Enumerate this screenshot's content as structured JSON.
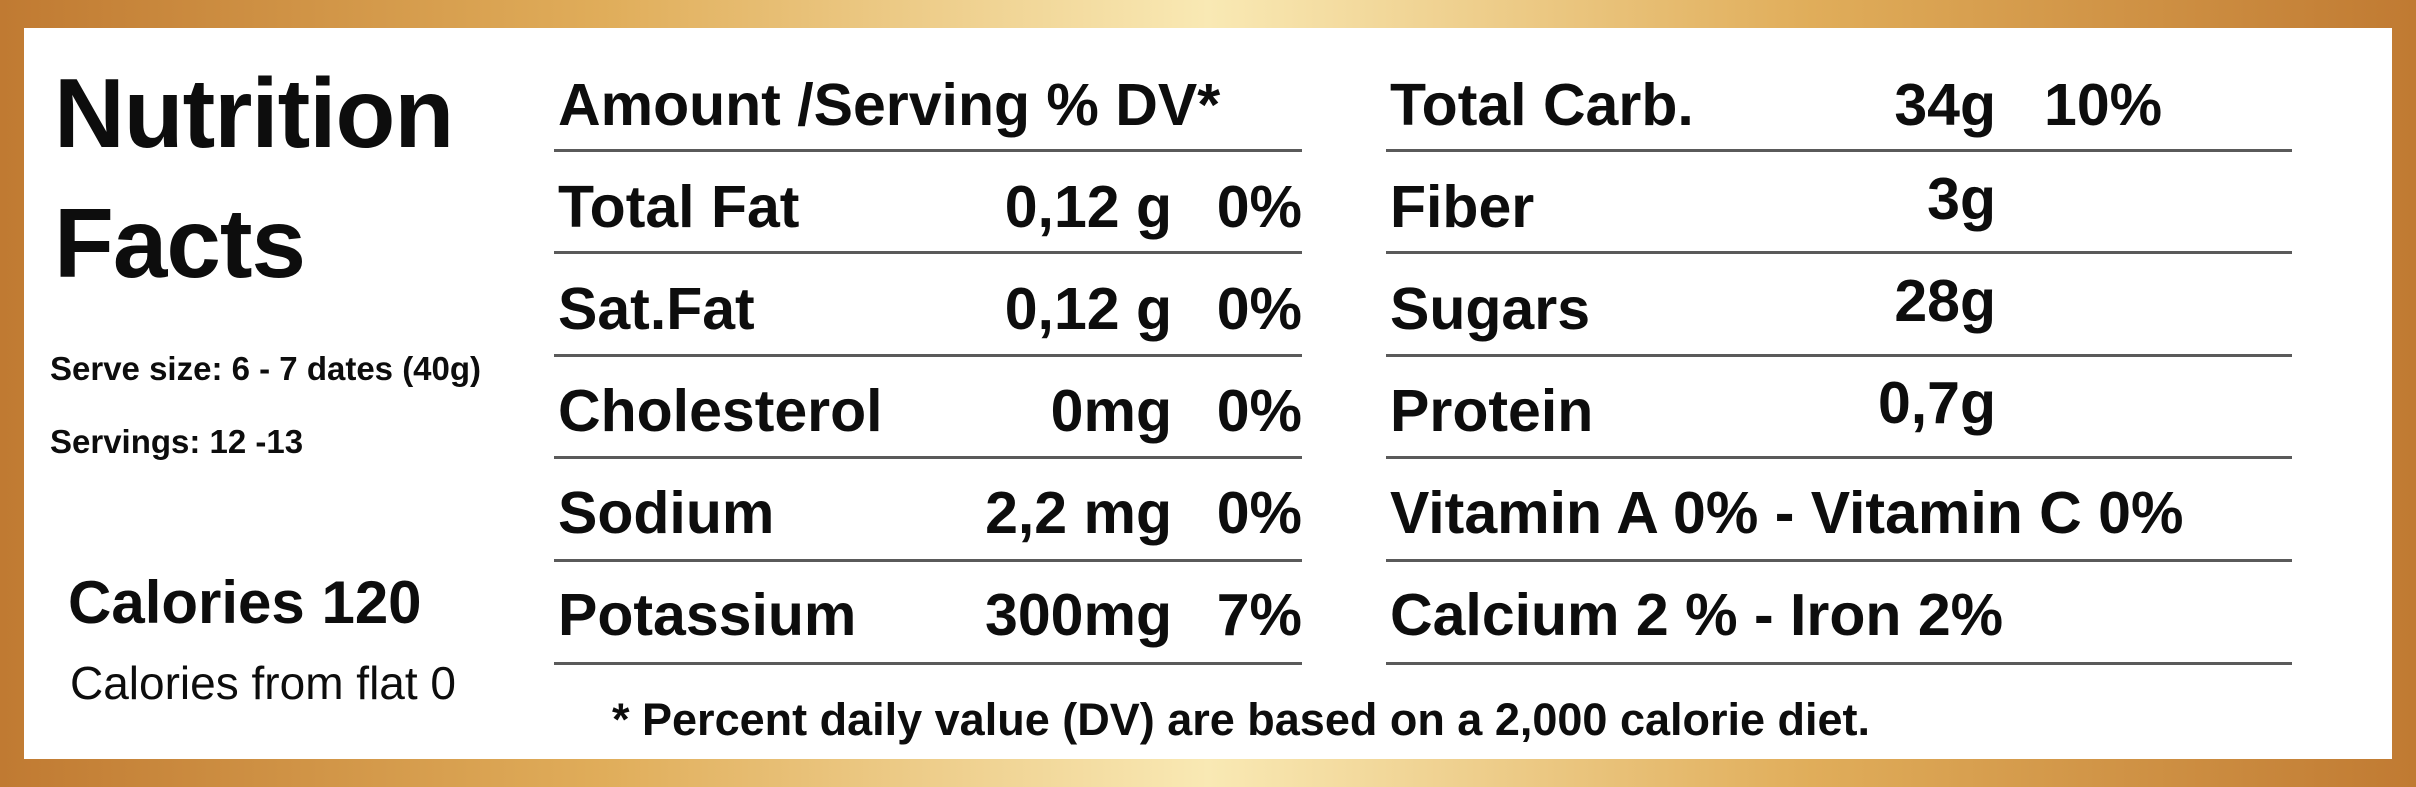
{
  "title_line1": "Nutrition",
  "title_line2": "Facts",
  "serve_size": "Serve size: 6 - 7 dates (40g)",
  "servings": "Servings: 12 -13",
  "calories": "Calories 120",
  "calories_from_fat": "Calories from flat 0",
  "left_table": {
    "header": "Amount /Serving % DV*",
    "rows": [
      {
        "name": "Total Fat",
        "amount": "0,12 g",
        "dv": "0%"
      },
      {
        "name": "Sat.Fat",
        "amount": "0,12 g",
        "dv": "0%"
      },
      {
        "name": "Cholesterol",
        "amount": "0mg",
        "dv": "0%"
      },
      {
        "name": "Sodium",
        "amount": "2,2 mg",
        "dv": "0%"
      },
      {
        "name": "Potassium",
        "amount": "300mg",
        "dv": "7%"
      }
    ]
  },
  "right_table": {
    "rows": [
      {
        "name": "Total Carb.",
        "amount": "34g",
        "dv": "10%"
      },
      {
        "name": "Fiber",
        "amount": "3g",
        "dv": ""
      },
      {
        "name": "Sugars",
        "amount": "28g",
        "dv": ""
      },
      {
        "name": "Protein",
        "amount": "0,7g",
        "dv": ""
      }
    ],
    "vitamins": "Vitamin A 0% - Vitamin C 0%",
    "minerals": "Calcium 2 % - Iron 2%"
  },
  "footnote": "* Percent daily value (DV) are based on a 2,000 calorie diet.",
  "colors": {
    "frame_dark": "#c07a32",
    "frame_light": "#f9e9b4"
  }
}
